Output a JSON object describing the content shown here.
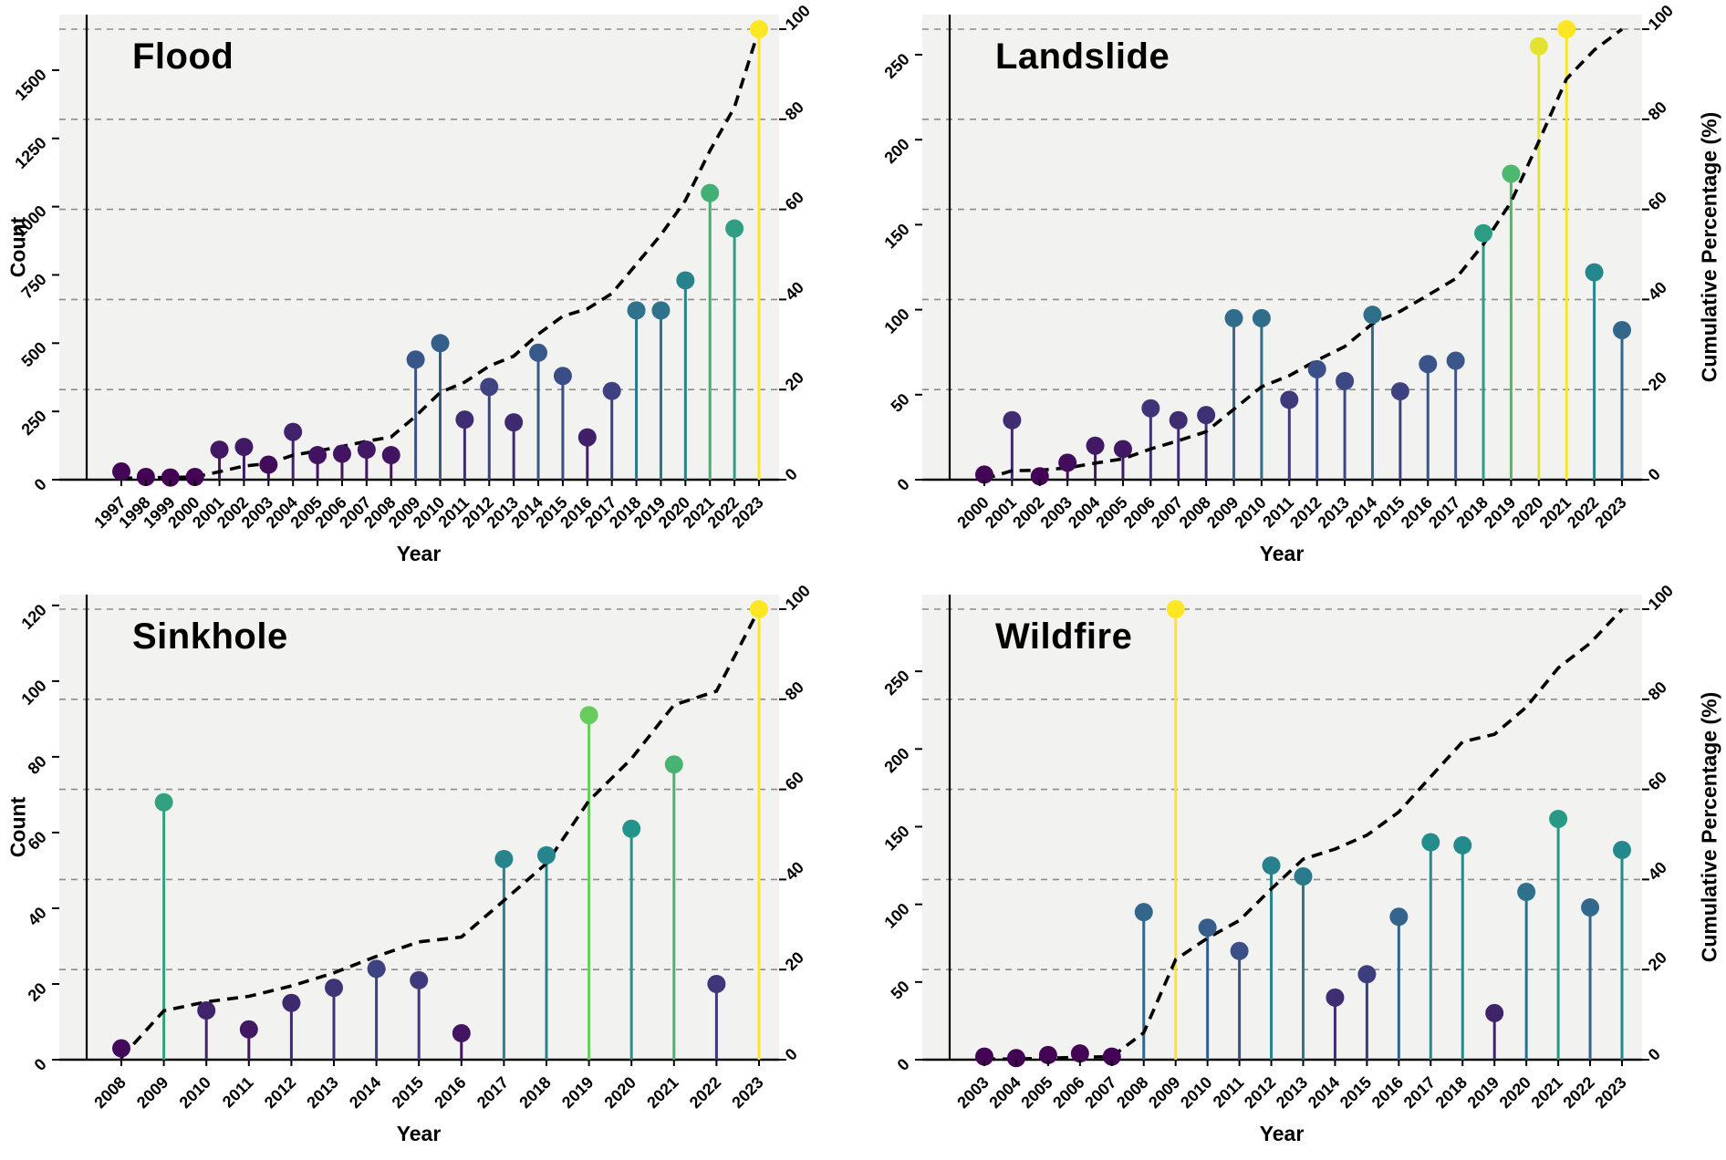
{
  "figure": {
    "background": "#ffffff",
    "panel_background": "#f2f2f1",
    "gridline_color": "#8c8c8c",
    "axis_color": "#000000",
    "cumulative_line_color": "#000000"
  },
  "axes": {
    "x_label": "Year",
    "y_left_label": "Count",
    "y_right_label": "Cumulative Percentage (%)",
    "right_ticks": [
      0,
      20,
      40,
      60,
      80,
      100
    ]
  },
  "colormap": {
    "name": "viridis",
    "anchors": [
      [
        0.0,
        "#440154"
      ],
      [
        0.25,
        "#3b528b"
      ],
      [
        0.5,
        "#21918c"
      ],
      [
        0.75,
        "#5ec962"
      ],
      [
        1.0,
        "#fde725"
      ]
    ]
  },
  "chart_data": [
    {
      "type": "lollipop+cumulative-line",
      "title": "Flood",
      "xlabel": "Year",
      "ylabel_left": "Count",
      "ylabel_right": "Cumulative Percentage (%)",
      "years": [
        1997,
        1998,
        1999,
        2000,
        2001,
        2002,
        2003,
        2004,
        2005,
        2006,
        2007,
        2008,
        2009,
        2010,
        2011,
        2012,
        2013,
        2014,
        2015,
        2016,
        2017,
        2018,
        2019,
        2020,
        2021,
        2022,
        2023
      ],
      "values": [
        30,
        10,
        8,
        10,
        110,
        120,
        55,
        175,
        90,
        95,
        110,
        90,
        440,
        500,
        220,
        340,
        210,
        465,
        380,
        155,
        325,
        620,
        620,
        730,
        1050,
        920,
        1650
      ],
      "count_ticks": [
        0,
        250,
        500,
        750,
        1000,
        1250,
        1500
      ],
      "axis_max": 1650,
      "right_axis_range": [
        0,
        100
      ],
      "grid": true,
      "show_left_axis_label": true,
      "show_right_axis_label": false
    },
    {
      "type": "lollipop+cumulative-line",
      "title": "Landslide",
      "xlabel": "Year",
      "ylabel_left": "Count",
      "ylabel_right": "Cumulative Percentage (%)",
      "years": [
        2000,
        2001,
        2002,
        2003,
        2004,
        2005,
        2006,
        2007,
        2008,
        2009,
        2010,
        2011,
        2012,
        2013,
        2014,
        2015,
        2016,
        2017,
        2018,
        2019,
        2020,
        2021,
        2022,
        2023
      ],
      "values": [
        3,
        35,
        2,
        10,
        20,
        18,
        42,
        35,
        38,
        95,
        95,
        47,
        65,
        58,
        97,
        52,
        68,
        70,
        145,
        180,
        255,
        265,
        122,
        88
      ],
      "count_ticks": [
        0,
        50,
        100,
        150,
        200,
        250
      ],
      "axis_max": 265,
      "right_axis_range": [
        0,
        100
      ],
      "grid": true,
      "show_left_axis_label": false,
      "show_right_axis_label": true
    },
    {
      "type": "lollipop+cumulative-line",
      "title": "Sinkhole",
      "xlabel": "Year",
      "ylabel_left": "Count",
      "ylabel_right": "Cumulative Percentage (%)",
      "years": [
        2008,
        2009,
        2010,
        2011,
        2012,
        2013,
        2014,
        2015,
        2016,
        2017,
        2018,
        2019,
        2020,
        2021,
        2022,
        2023
      ],
      "values": [
        3,
        68,
        13,
        8,
        15,
        19,
        24,
        21,
        7,
        53,
        54,
        91,
        61,
        78,
        20,
        119
      ],
      "count_ticks": [
        0,
        20,
        40,
        60,
        80,
        100,
        120
      ],
      "axis_max": 119,
      "right_axis_range": [
        0,
        100
      ],
      "grid": true,
      "show_left_axis_label": true,
      "show_right_axis_label": false
    },
    {
      "type": "lollipop+cumulative-line",
      "title": "Wildfire",
      "xlabel": "Year",
      "ylabel_left": "Count",
      "ylabel_right": "Cumulative Percentage (%)",
      "years": [
        2003,
        2004,
        2005,
        2006,
        2007,
        2008,
        2009,
        2010,
        2011,
        2012,
        2013,
        2014,
        2015,
        2016,
        2017,
        2018,
        2019,
        2020,
        2021,
        2022,
        2023
      ],
      "values": [
        2,
        1,
        3,
        4,
        2,
        95,
        290,
        85,
        70,
        125,
        118,
        40,
        55,
        92,
        140,
        138,
        30,
        108,
        155,
        98,
        135
      ],
      "count_ticks": [
        0,
        50,
        100,
        150,
        200,
        250
      ],
      "axis_max": 290,
      "right_axis_range": [
        0,
        100
      ],
      "grid": true,
      "show_left_axis_label": false,
      "show_right_axis_label": true
    }
  ]
}
